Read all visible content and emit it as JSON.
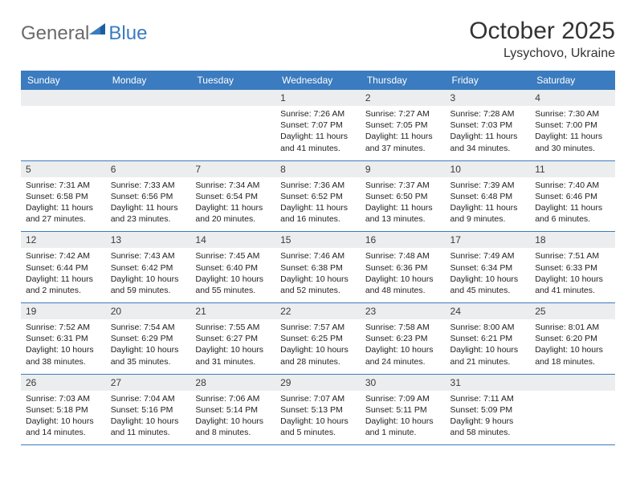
{
  "brand": {
    "part1": "General",
    "part2": "Blue"
  },
  "title": "October 2025",
  "location": "Lysychovo, Ukraine",
  "colors": {
    "accent": "#3b7bbf",
    "header_text": "#ffffff",
    "daynum_bg": "#ecedee",
    "body_text": "#222222",
    "title_text": "#333333",
    "logo_gray": "#6a6a6a"
  },
  "day_names": [
    "Sunday",
    "Monday",
    "Tuesday",
    "Wednesday",
    "Thursday",
    "Friday",
    "Saturday"
  ],
  "weeks": [
    [
      {
        "n": "",
        "lines": []
      },
      {
        "n": "",
        "lines": []
      },
      {
        "n": "",
        "lines": []
      },
      {
        "n": "1",
        "lines": [
          "Sunrise: 7:26 AM",
          "Sunset: 7:07 PM",
          "Daylight: 11 hours and 41 minutes."
        ]
      },
      {
        "n": "2",
        "lines": [
          "Sunrise: 7:27 AM",
          "Sunset: 7:05 PM",
          "Daylight: 11 hours and 37 minutes."
        ]
      },
      {
        "n": "3",
        "lines": [
          "Sunrise: 7:28 AM",
          "Sunset: 7:03 PM",
          "Daylight: 11 hours and 34 minutes."
        ]
      },
      {
        "n": "4",
        "lines": [
          "Sunrise: 7:30 AM",
          "Sunset: 7:00 PM",
          "Daylight: 11 hours and 30 minutes."
        ]
      }
    ],
    [
      {
        "n": "5",
        "lines": [
          "Sunrise: 7:31 AM",
          "Sunset: 6:58 PM",
          "Daylight: 11 hours and 27 minutes."
        ]
      },
      {
        "n": "6",
        "lines": [
          "Sunrise: 7:33 AM",
          "Sunset: 6:56 PM",
          "Daylight: 11 hours and 23 minutes."
        ]
      },
      {
        "n": "7",
        "lines": [
          "Sunrise: 7:34 AM",
          "Sunset: 6:54 PM",
          "Daylight: 11 hours and 20 minutes."
        ]
      },
      {
        "n": "8",
        "lines": [
          "Sunrise: 7:36 AM",
          "Sunset: 6:52 PM",
          "Daylight: 11 hours and 16 minutes."
        ]
      },
      {
        "n": "9",
        "lines": [
          "Sunrise: 7:37 AM",
          "Sunset: 6:50 PM",
          "Daylight: 11 hours and 13 minutes."
        ]
      },
      {
        "n": "10",
        "lines": [
          "Sunrise: 7:39 AM",
          "Sunset: 6:48 PM",
          "Daylight: 11 hours and 9 minutes."
        ]
      },
      {
        "n": "11",
        "lines": [
          "Sunrise: 7:40 AM",
          "Sunset: 6:46 PM",
          "Daylight: 11 hours and 6 minutes."
        ]
      }
    ],
    [
      {
        "n": "12",
        "lines": [
          "Sunrise: 7:42 AM",
          "Sunset: 6:44 PM",
          "Daylight: 11 hours and 2 minutes."
        ]
      },
      {
        "n": "13",
        "lines": [
          "Sunrise: 7:43 AM",
          "Sunset: 6:42 PM",
          "Daylight: 10 hours and 59 minutes."
        ]
      },
      {
        "n": "14",
        "lines": [
          "Sunrise: 7:45 AM",
          "Sunset: 6:40 PM",
          "Daylight: 10 hours and 55 minutes."
        ]
      },
      {
        "n": "15",
        "lines": [
          "Sunrise: 7:46 AM",
          "Sunset: 6:38 PM",
          "Daylight: 10 hours and 52 minutes."
        ]
      },
      {
        "n": "16",
        "lines": [
          "Sunrise: 7:48 AM",
          "Sunset: 6:36 PM",
          "Daylight: 10 hours and 48 minutes."
        ]
      },
      {
        "n": "17",
        "lines": [
          "Sunrise: 7:49 AM",
          "Sunset: 6:34 PM",
          "Daylight: 10 hours and 45 minutes."
        ]
      },
      {
        "n": "18",
        "lines": [
          "Sunrise: 7:51 AM",
          "Sunset: 6:33 PM",
          "Daylight: 10 hours and 41 minutes."
        ]
      }
    ],
    [
      {
        "n": "19",
        "lines": [
          "Sunrise: 7:52 AM",
          "Sunset: 6:31 PM",
          "Daylight: 10 hours and 38 minutes."
        ]
      },
      {
        "n": "20",
        "lines": [
          "Sunrise: 7:54 AM",
          "Sunset: 6:29 PM",
          "Daylight: 10 hours and 35 minutes."
        ]
      },
      {
        "n": "21",
        "lines": [
          "Sunrise: 7:55 AM",
          "Sunset: 6:27 PM",
          "Daylight: 10 hours and 31 minutes."
        ]
      },
      {
        "n": "22",
        "lines": [
          "Sunrise: 7:57 AM",
          "Sunset: 6:25 PM",
          "Daylight: 10 hours and 28 minutes."
        ]
      },
      {
        "n": "23",
        "lines": [
          "Sunrise: 7:58 AM",
          "Sunset: 6:23 PM",
          "Daylight: 10 hours and 24 minutes."
        ]
      },
      {
        "n": "24",
        "lines": [
          "Sunrise: 8:00 AM",
          "Sunset: 6:21 PM",
          "Daylight: 10 hours and 21 minutes."
        ]
      },
      {
        "n": "25",
        "lines": [
          "Sunrise: 8:01 AM",
          "Sunset: 6:20 PM",
          "Daylight: 10 hours and 18 minutes."
        ]
      }
    ],
    [
      {
        "n": "26",
        "lines": [
          "Sunrise: 7:03 AM",
          "Sunset: 5:18 PM",
          "Daylight: 10 hours and 14 minutes."
        ]
      },
      {
        "n": "27",
        "lines": [
          "Sunrise: 7:04 AM",
          "Sunset: 5:16 PM",
          "Daylight: 10 hours and 11 minutes."
        ]
      },
      {
        "n": "28",
        "lines": [
          "Sunrise: 7:06 AM",
          "Sunset: 5:14 PM",
          "Daylight: 10 hours and 8 minutes."
        ]
      },
      {
        "n": "29",
        "lines": [
          "Sunrise: 7:07 AM",
          "Sunset: 5:13 PM",
          "Daylight: 10 hours and 5 minutes."
        ]
      },
      {
        "n": "30",
        "lines": [
          "Sunrise: 7:09 AM",
          "Sunset: 5:11 PM",
          "Daylight: 10 hours and 1 minute."
        ]
      },
      {
        "n": "31",
        "lines": [
          "Sunrise: 7:11 AM",
          "Sunset: 5:09 PM",
          "Daylight: 9 hours and 58 minutes."
        ]
      },
      {
        "n": "",
        "lines": []
      }
    ]
  ]
}
